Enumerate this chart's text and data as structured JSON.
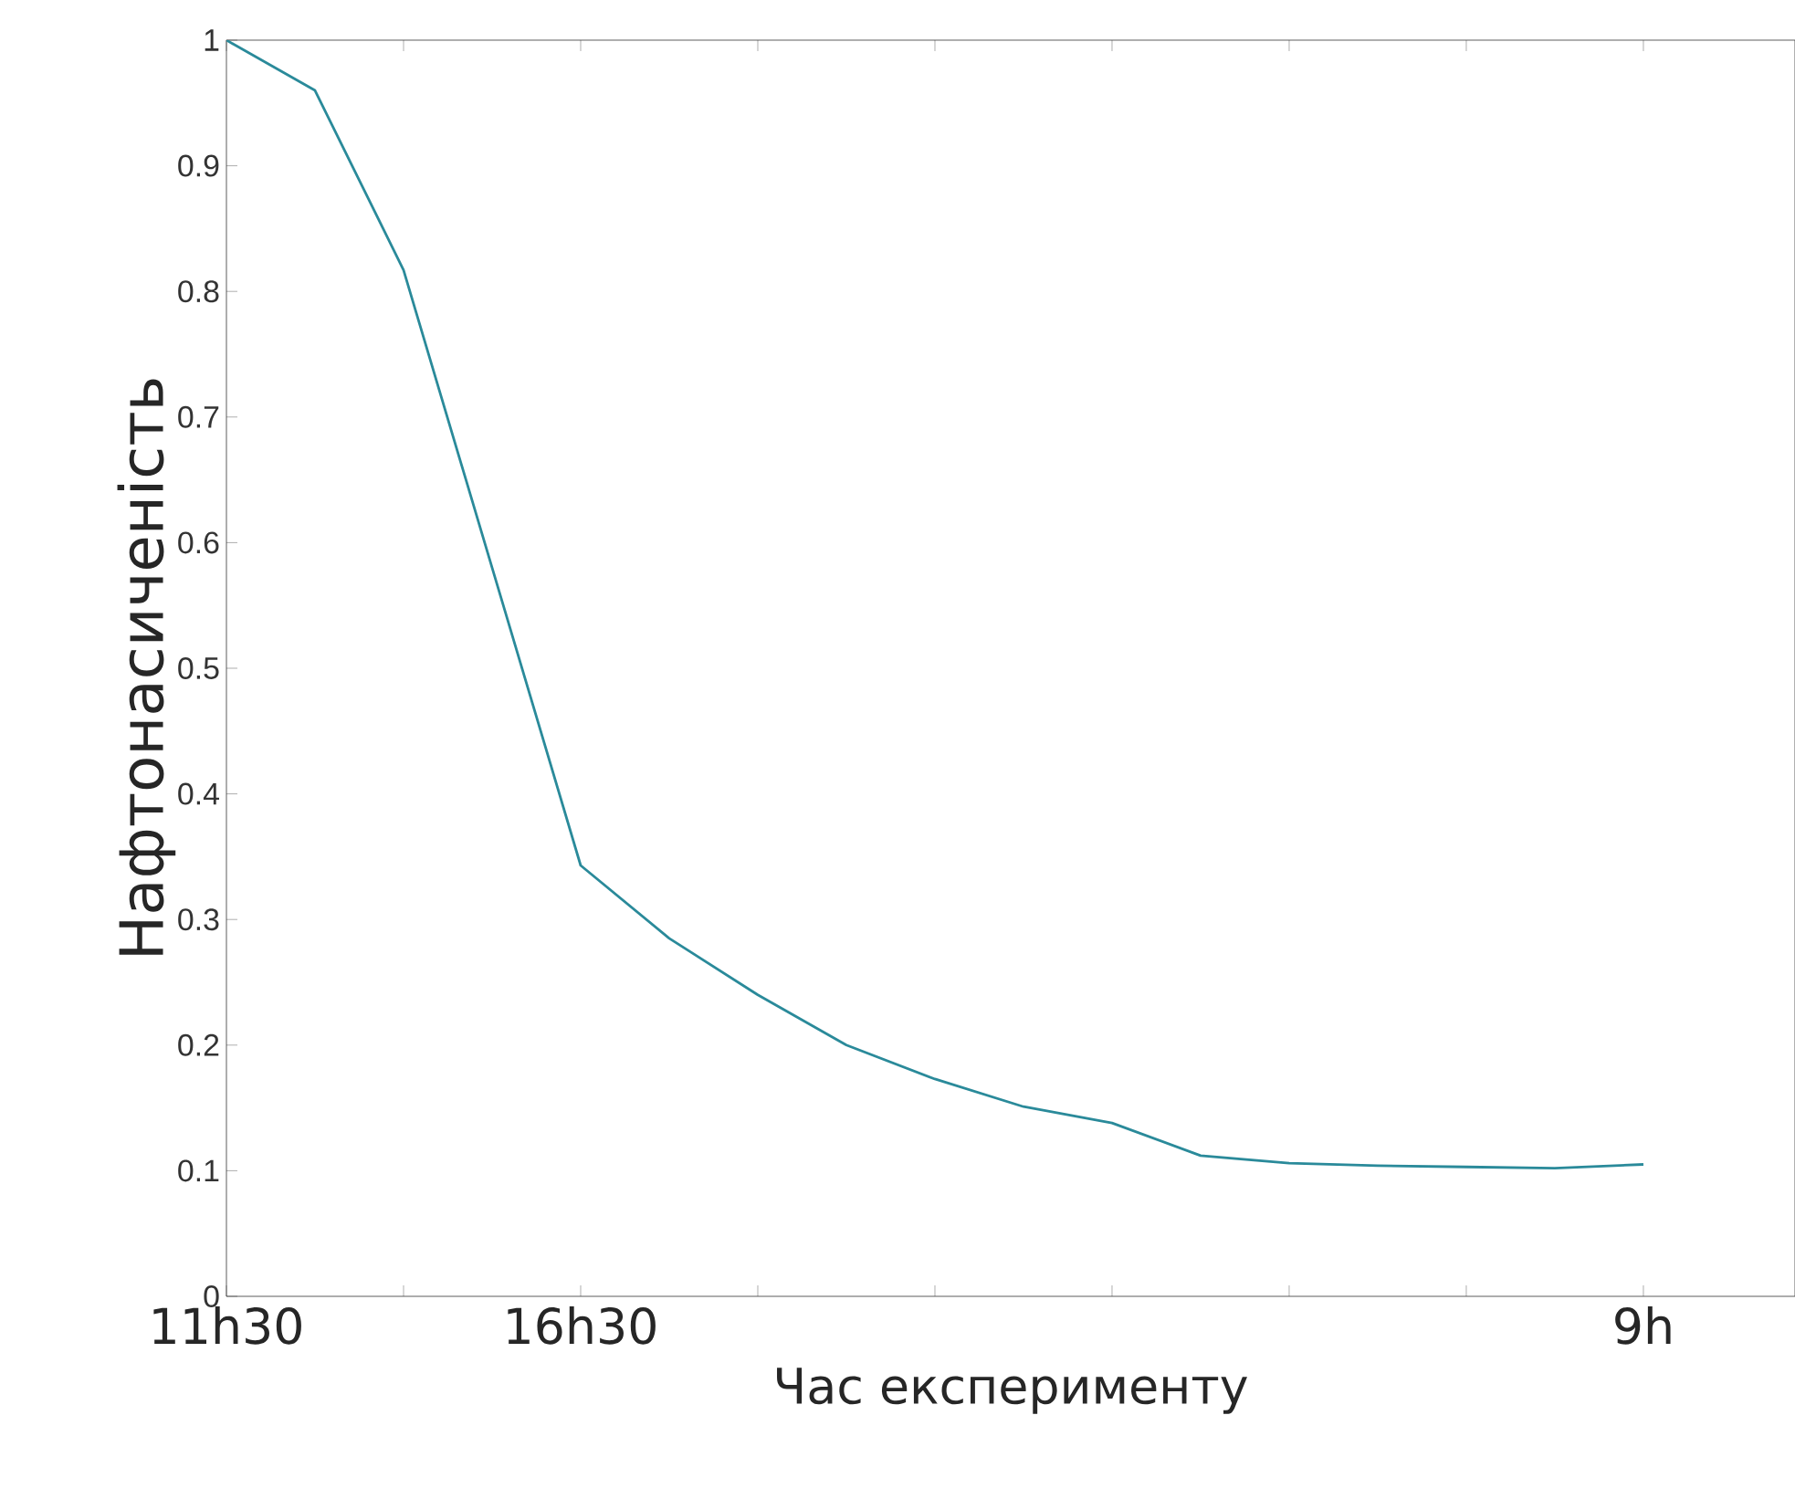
{
  "chart_data": {
    "type": "line",
    "xlabel": "Час експерименту",
    "ylabel": "Нафтонасиченість",
    "categories": [
      "11h30",
      null,
      null,
      null,
      "16h30",
      null,
      null,
      null,
      null,
      null,
      null,
      null,
      null,
      null,
      null,
      null,
      "9h"
    ],
    "values": [
      1.0,
      0.96,
      0.817,
      0.58,
      0.343,
      0.285,
      0.24,
      0.2,
      0.173,
      0.151,
      0.138,
      0.112,
      0.106,
      0.104,
      0.103,
      0.102,
      0.105
    ],
    "color": "#2a8a9a",
    "ylim": [
      0,
      1
    ],
    "yticks": [
      0,
      0.1,
      0.2,
      0.3,
      0.4,
      0.5,
      0.6,
      0.7,
      0.8,
      0.9,
      1
    ],
    "grid": false,
    "marker": "none",
    "line_style": "solid"
  }
}
